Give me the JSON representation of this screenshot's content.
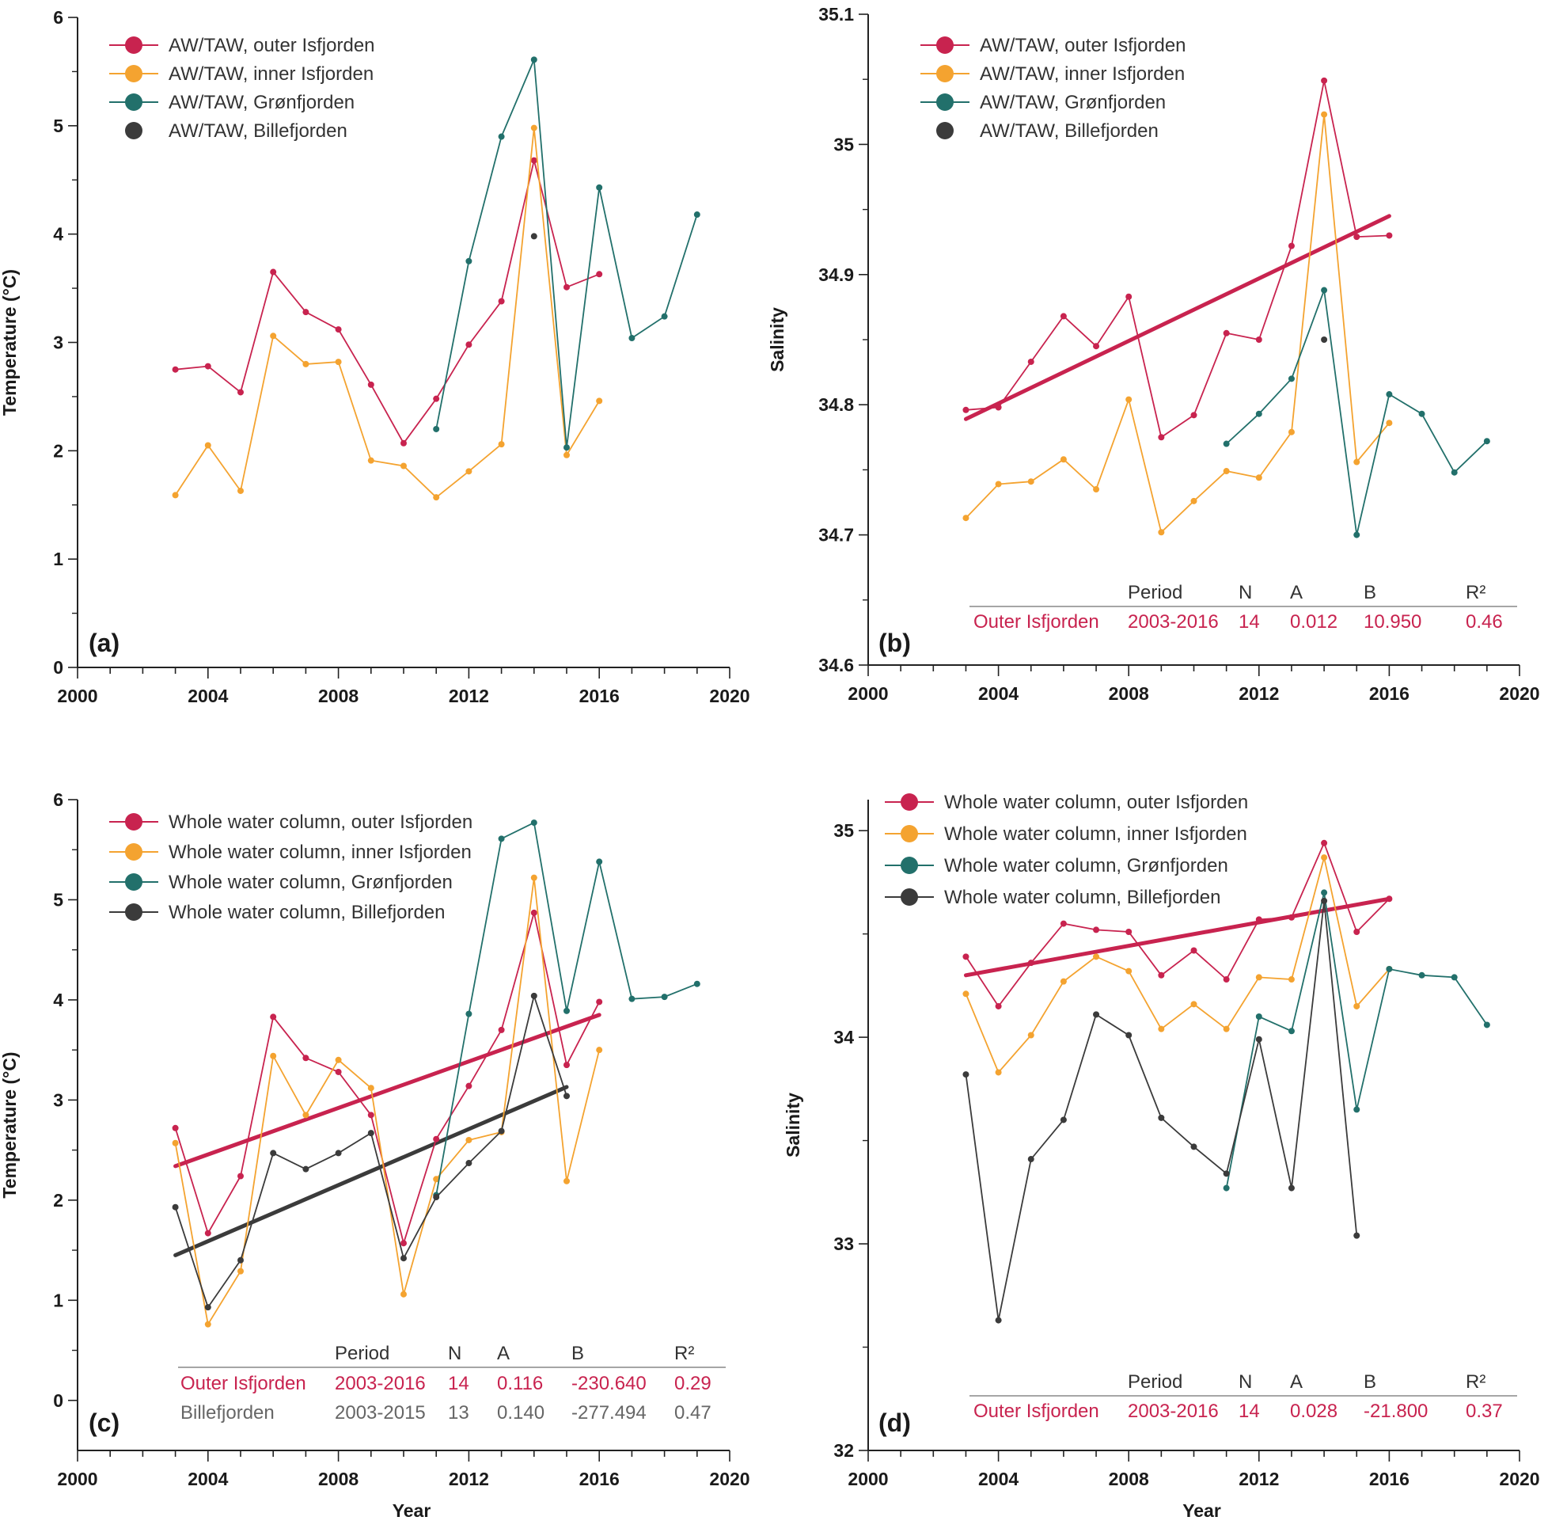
{
  "colors": {
    "outer": "#c8234f",
    "inner": "#f4a330",
    "gron": "#22706b",
    "bille": "#3b3b3b",
    "axis": "#222222"
  },
  "chart_data": [
    {
      "id": "a",
      "type": "line",
      "panel_label": "(a)",
      "xlabel": "",
      "ylabel": "Temperature (°C)",
      "xlim": [
        2000,
        2020
      ],
      "ylim": [
        0,
        6
      ],
      "xticks": [
        2000,
        2004,
        2008,
        2012,
        2016,
        2020
      ],
      "yticks": [
        0,
        1,
        2,
        3,
        4,
        5,
        6
      ],
      "ytick_labels": [
        "0",
        "1",
        "2",
        "3",
        "4",
        "5",
        "6"
      ],
      "series": [
        {
          "name": "AW/TAW, outer Isfjorden",
          "key": "outer",
          "line": true,
          "x": [
            2003,
            2004,
            2005,
            2006,
            2007,
            2008,
            2009,
            2010,
            2011,
            2012,
            2013,
            2014,
            2015,
            2016
          ],
          "y": [
            2.75,
            2.78,
            2.54,
            3.65,
            3.28,
            3.12,
            2.61,
            2.07,
            2.48,
            2.98,
            3.38,
            4.68,
            3.51,
            3.63
          ]
        },
        {
          "name": "AW/TAW, inner Isfjorden",
          "key": "inner",
          "line": true,
          "x": [
            2003,
            2004,
            2005,
            2006,
            2007,
            2008,
            2009,
            2010,
            2011,
            2012,
            2013,
            2014,
            2015,
            2016
          ],
          "y": [
            1.59,
            2.05,
            1.63,
            3.06,
            2.8,
            2.82,
            1.91,
            1.86,
            1.57,
            1.81,
            2.06,
            4.98,
            1.96,
            2.46
          ]
        },
        {
          "name": "AW/TAW, Grønfjorden",
          "key": "gron",
          "line": true,
          "x": [
            2011,
            2012,
            2013,
            2014,
            2015,
            2016,
            2017,
            2018,
            2019
          ],
          "y": [
            2.2,
            3.75,
            4.9,
            5.61,
            2.03,
            4.43,
            3.04,
            3.24,
            4.18
          ]
        },
        {
          "name": "AW/TAW, Billefjorden",
          "key": "bille",
          "line": false,
          "x": [
            2014
          ],
          "y": [
            3.98
          ]
        }
      ],
      "trends": [],
      "stats": null
    },
    {
      "id": "b",
      "type": "line",
      "panel_label": "(b)",
      "xlabel": "",
      "ylabel": "Salinity",
      "xlim": [
        2000,
        2020
      ],
      "ylim": [
        34.6,
        35.1
      ],
      "xticks": [
        2000,
        2004,
        2008,
        2012,
        2016,
        2020
      ],
      "yticks": [
        34.6,
        34.7,
        34.8,
        34.9,
        35.0,
        35.1
      ],
      "ytick_labels": [
        "34.6",
        "34.7",
        "34.8",
        "34.9",
        "35",
        "35.1"
      ],
      "series": [
        {
          "name": "AW/TAW, outer Isfjorden",
          "key": "outer",
          "line": true,
          "x": [
            2003,
            2004,
            2005,
            2006,
            2007,
            2008,
            2009,
            2010,
            2011,
            2012,
            2013,
            2014,
            2015,
            2016
          ],
          "y": [
            34.796,
            34.798,
            34.833,
            34.868,
            34.845,
            34.883,
            34.775,
            34.792,
            34.855,
            34.85,
            34.922,
            35.049,
            34.929,
            34.93
          ]
        },
        {
          "name": "AW/TAW, inner Isfjorden",
          "key": "inner",
          "line": true,
          "x": [
            2003,
            2004,
            2005,
            2006,
            2007,
            2008,
            2009,
            2010,
            2011,
            2012,
            2013,
            2014,
            2015,
            2016
          ],
          "y": [
            34.713,
            34.739,
            34.741,
            34.758,
            34.735,
            34.804,
            34.702,
            34.726,
            34.749,
            34.744,
            34.779,
            35.023,
            34.756,
            34.786
          ]
        },
        {
          "name": "AW/TAW, Grønfjorden",
          "key": "gron",
          "line": true,
          "x": [
            2011,
            2012,
            2013,
            2014,
            2015,
            2016,
            2017,
            2018,
            2019
          ],
          "y": [
            34.77,
            34.793,
            34.82,
            34.888,
            34.7,
            34.808,
            34.793,
            34.748,
            34.772
          ]
        },
        {
          "name": "AW/TAW, Billefjorden",
          "key": "bille",
          "line": false,
          "x": [
            2014
          ],
          "y": [
            34.85
          ]
        }
      ],
      "trends": [
        {
          "key": "outer",
          "x": [
            2003,
            2016
          ],
          "y": [
            34.789,
            34.945
          ]
        }
      ],
      "stats": {
        "headers": [
          "Period",
          "N",
          "A",
          "B",
          "R²"
        ],
        "rows": [
          {
            "key": "outer",
            "label": "Outer Isfjorden",
            "period": "2003-2016",
            "n": "14",
            "a": "0.012",
            "b": "10.950",
            "r2": "0.46"
          }
        ]
      }
    },
    {
      "id": "c",
      "type": "line",
      "panel_label": "(c)",
      "xlabel": "Year",
      "ylabel": "Temperature (°C)",
      "xlim": [
        2000,
        2020
      ],
      "ylim": [
        -0.5,
        6
      ],
      "xticks": [
        2000,
        2004,
        2008,
        2012,
        2016,
        2020
      ],
      "yticks": [
        0,
        1,
        2,
        3,
        4,
        5,
        6
      ],
      "ytick_labels": [
        "0",
        "1",
        "2",
        "3",
        "4",
        "5",
        "6"
      ],
      "series": [
        {
          "name": "Whole water column, outer Isfjorden",
          "key": "outer",
          "line": true,
          "x": [
            2003,
            2004,
            2005,
            2006,
            2007,
            2008,
            2009,
            2010,
            2011,
            2012,
            2013,
            2014,
            2015,
            2016
          ],
          "y": [
            2.72,
            1.67,
            2.24,
            3.83,
            3.42,
            3.28,
            2.85,
            1.57,
            2.61,
            3.14,
            3.7,
            4.87,
            3.35,
            3.98
          ]
        },
        {
          "name": "Whole water column, inner Isfjorden",
          "key": "inner",
          "line": true,
          "x": [
            2003,
            2004,
            2005,
            2006,
            2007,
            2008,
            2009,
            2010,
            2011,
            2012,
            2013,
            2014,
            2015,
            2016
          ],
          "y": [
            2.57,
            0.76,
            1.29,
            3.44,
            2.85,
            3.4,
            3.12,
            1.06,
            2.21,
            2.6,
            2.68,
            5.22,
            2.19,
            3.5
          ]
        },
        {
          "name": "Whole water column, Grønfjorden",
          "key": "gron",
          "line": true,
          "x": [
            2011,
            2012,
            2013,
            2014,
            2015,
            2016,
            2017,
            2018,
            2019
          ],
          "y": [
            2.05,
            3.86,
            5.61,
            5.77,
            3.89,
            5.38,
            4.01,
            4.03,
            4.16
          ]
        },
        {
          "name": "Whole water column, Billefjorden",
          "key": "bille",
          "line": true,
          "x": [
            2003,
            2004,
            2005,
            2006,
            2007,
            2008,
            2009,
            2010,
            2011,
            2012,
            2013,
            2014,
            2015
          ],
          "y": [
            1.93,
            0.93,
            1.4,
            2.47,
            2.31,
            2.47,
            2.67,
            1.42,
            2.03,
            2.37,
            2.69,
            4.04,
            3.04
          ]
        }
      ],
      "trends": [
        {
          "key": "outer",
          "x": [
            2003,
            2016
          ],
          "y": [
            2.34,
            3.85
          ]
        },
        {
          "key": "bille",
          "x": [
            2003,
            2015
          ],
          "y": [
            1.45,
            3.13
          ]
        }
      ],
      "stats": {
        "headers": [
          "Period",
          "N",
          "A",
          "B",
          "R²"
        ],
        "rows": [
          {
            "key": "outer",
            "label": "Outer Isfjorden",
            "period": "2003-2016",
            "n": "14",
            "a": "0.116",
            "b": "-230.640",
            "r2": "0.29"
          },
          {
            "key": "bille",
            "label": "Billefjorden",
            "period": "2003-2015",
            "n": "13",
            "a": "0.140",
            "b": "-277.494",
            "r2": "0.47"
          }
        ]
      }
    },
    {
      "id": "d",
      "type": "line",
      "panel_label": "(d)",
      "xlabel": "Year",
      "ylabel": "Salinity",
      "xlim": [
        2000,
        2020
      ],
      "ylim": [
        32,
        35.15
      ],
      "xticks": [
        2000,
        2004,
        2008,
        2012,
        2016,
        2020
      ],
      "yticks": [
        32,
        33,
        34,
        35
      ],
      "ytick_labels": [
        "32",
        "33",
        "34",
        "35"
      ],
      "series": [
        {
          "name": "Whole water column, outer Isfjorden",
          "key": "outer",
          "line": true,
          "x": [
            2003,
            2004,
            2005,
            2006,
            2007,
            2008,
            2009,
            2010,
            2011,
            2012,
            2013,
            2014,
            2015,
            2016
          ],
          "y": [
            34.39,
            34.15,
            34.36,
            34.55,
            34.52,
            34.51,
            34.3,
            34.42,
            34.28,
            34.57,
            34.58,
            34.94,
            34.51,
            34.67
          ]
        },
        {
          "name": "Whole water column, inner Isfjorden",
          "key": "inner",
          "line": true,
          "x": [
            2003,
            2004,
            2005,
            2006,
            2007,
            2008,
            2009,
            2010,
            2011,
            2012,
            2013,
            2014,
            2015,
            2016
          ],
          "y": [
            34.21,
            33.83,
            34.01,
            34.27,
            34.39,
            34.32,
            34.04,
            34.16,
            34.04,
            34.29,
            34.28,
            34.87,
            34.15,
            34.33
          ]
        },
        {
          "name": "Whole water column, Grønfjorden",
          "key": "gron",
          "line": true,
          "x": [
            2011,
            2012,
            2013,
            2014,
            2015,
            2016,
            2017,
            2018,
            2019
          ],
          "y": [
            33.27,
            34.1,
            34.03,
            34.7,
            33.65,
            34.33,
            34.3,
            34.29,
            34.06
          ]
        },
        {
          "name": "Whole water column, Billefjorden",
          "key": "bille",
          "line": true,
          "x": [
            2003,
            2004,
            2005,
            2006,
            2007,
            2008,
            2009,
            2010,
            2011,
            2012,
            2013,
            2014,
            2015
          ],
          "y": [
            33.82,
            32.63,
            33.41,
            33.6,
            34.11,
            34.01,
            33.61,
            33.47,
            33.34,
            33.99,
            33.27,
            34.66,
            33.04
          ]
        }
      ],
      "trends": [
        {
          "key": "outer",
          "x": [
            2003,
            2016
          ],
          "y": [
            34.3,
            34.67
          ]
        }
      ],
      "stats": {
        "headers": [
          "Period",
          "N",
          "A",
          "B",
          "R²"
        ],
        "rows": [
          {
            "key": "outer",
            "label": "Outer Isfjorden",
            "period": "2003-2016",
            "n": "14",
            "a": "0.028",
            "b": "-21.800",
            "r2": "0.37"
          }
        ]
      }
    }
  ]
}
